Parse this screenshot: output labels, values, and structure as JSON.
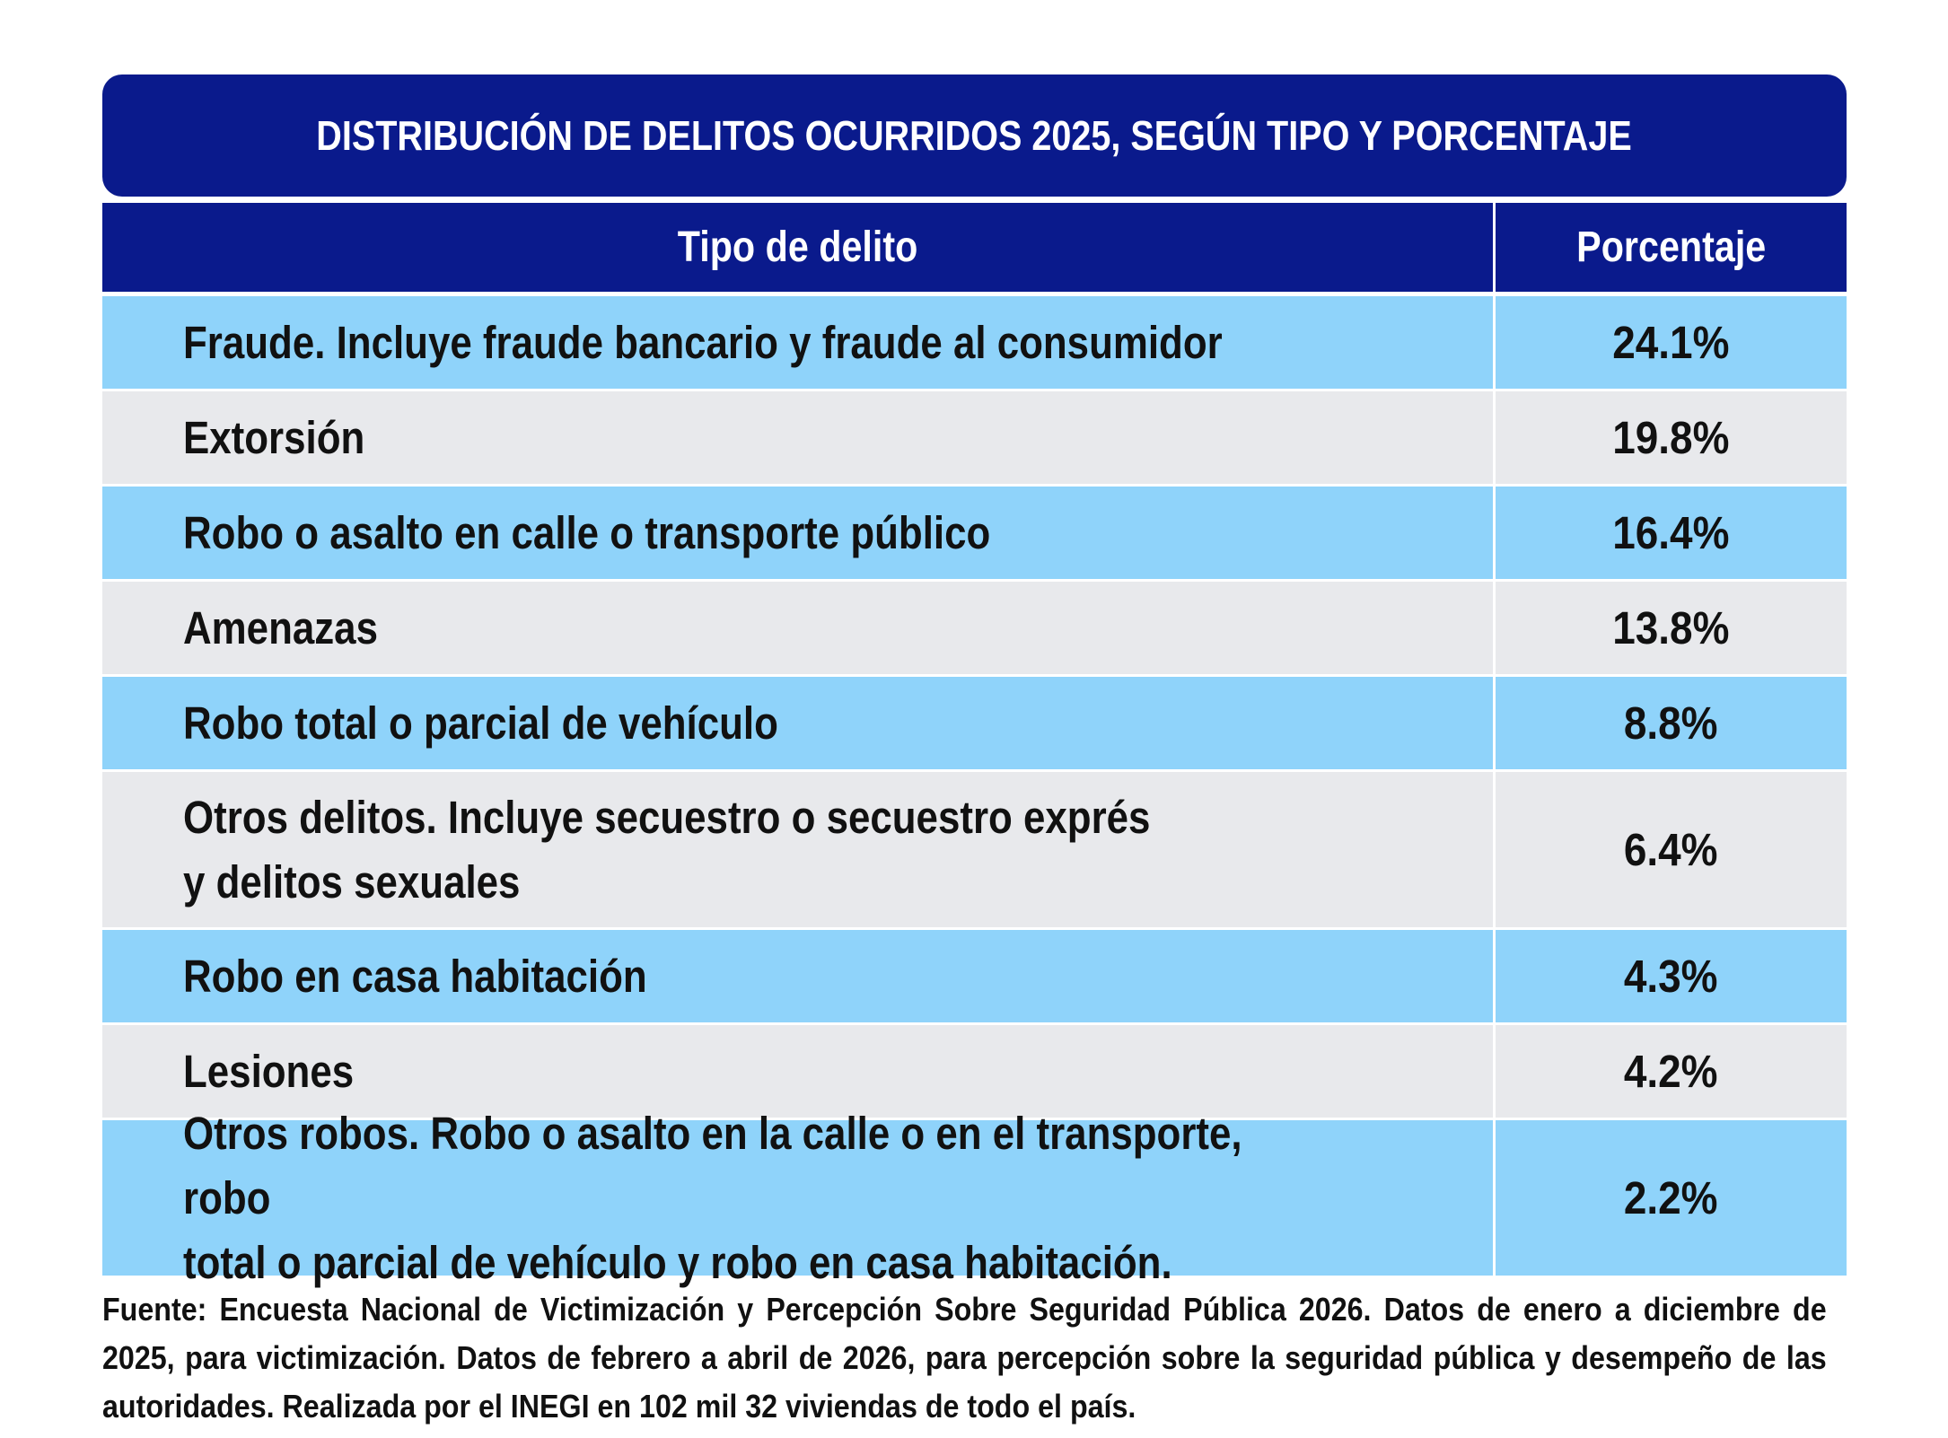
{
  "chart_data": {
    "type": "table",
    "title": "DISTRIBUCIÓN DE DELITOS OCURRIDOS 2025, SEGÚN TIPO Y PORCENTAJE",
    "columns": [
      "Tipo de delito",
      "Porcentaje"
    ],
    "rows": [
      {
        "type": "Fraude. Incluye fraude bancario y fraude al consumidor",
        "percent": "24.1%",
        "value": 24.1
      },
      {
        "type": "Extorsión",
        "percent": "19.8%",
        "value": 19.8
      },
      {
        "type": "Robo o asalto en calle o transporte público",
        "percent": "16.4%",
        "value": 16.4
      },
      {
        "type": "Amenazas",
        "percent": "13.8%",
        "value": 13.8
      },
      {
        "type": "Robo total o parcial de vehículo",
        "percent": "8.8%",
        "value": 8.8
      },
      {
        "type": "Otros delitos. Incluye secuestro o secuestro exprés\ny delitos sexuales",
        "percent": "6.4%",
        "value": 6.4
      },
      {
        "type": "Robo en casa habitación",
        "percent": "4.3%",
        "value": 4.3
      },
      {
        "type": "Lesiones",
        "percent": "4.2%",
        "value": 4.2
      },
      {
        "type": "Otros robos. Robo o asalto en la calle o en el transporte, robo\ntotal o parcial de vehículo y robo en casa habitación.",
        "percent": "2.2%",
        "value": 2.2
      }
    ],
    "colors": {
      "header": "#0a1a8c",
      "row_blue": "#8fd3fa",
      "row_gray": "#e8e9ec"
    }
  },
  "footnote": "Fuente: Encuesta Nacional de Victimización y Percepción Sobre Seguridad Pública 2026. Datos de enero a diciembre de 2025, para victimización. Datos de febrero a abril de 2026, para percepción sobre la seguridad pública y desempeño de las autoridades. Realizada por el INEGI en 102 mil 32 viviendas de todo el país."
}
